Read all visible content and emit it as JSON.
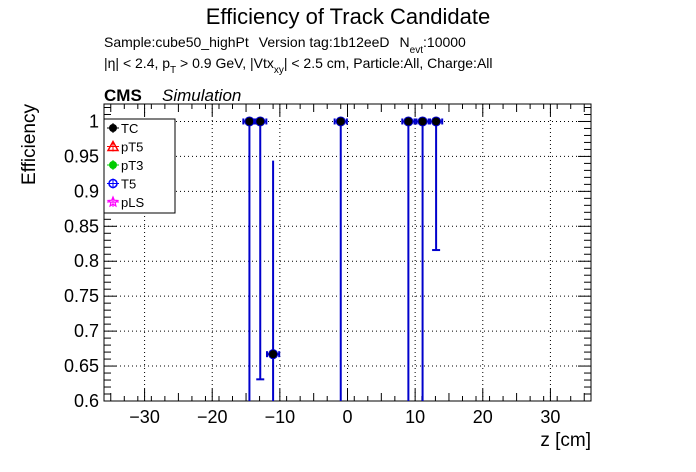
{
  "chart_data": {
    "type": "scatter",
    "title": "Efficiency of Track Candidate",
    "info_line1": {
      "sample": "Sample:cube50_highPt",
      "version": "Version tag:1b12eeD",
      "n_prefix": "N",
      "n_sub": "evt",
      "n_value": ":10000"
    },
    "info_line2": {
      "eta": "|η| < 2.4, p",
      "pt_sub": "T",
      "pt_rest": " > 0.9 GeV, |Vtx",
      "vtx_sub": "xy",
      "vtx_rest": "| < 2.5 cm, Particle:All, Charge:All"
    },
    "cms_label": "CMS",
    "simulation_label": "Simulation",
    "xlabel": "z [cm]",
    "ylabel": "Efficiency",
    "xlim": [
      -36,
      36
    ],
    "ylim": [
      0.6,
      1.025
    ],
    "xticks": [
      -30,
      -20,
      -10,
      0,
      10,
      20,
      30
    ],
    "yticks": [
      0.6,
      0.65,
      0.7,
      0.75,
      0.8,
      0.85,
      0.9,
      0.95,
      1
    ],
    "ytick_labels": [
      "0.6",
      "0.65",
      "0.7",
      "0.75",
      "0.8",
      "0.85",
      "0.9",
      "0.95",
      "1"
    ],
    "xtick_labels": [
      "−30",
      "−20",
      "−10",
      "0",
      "10",
      "20",
      "30"
    ],
    "grid": true,
    "legend_position": "top-left",
    "legend": [
      {
        "name": "TC",
        "color": "#000000",
        "marker": "filled-circle"
      },
      {
        "name": "pT5",
        "color": "#ff0000",
        "marker": "open-triangle"
      },
      {
        "name": "pT3",
        "color": "#00cc00",
        "marker": "filled-circle"
      },
      {
        "name": "T5",
        "color": "#0000ff",
        "marker": "open-circle"
      },
      {
        "name": "pLS",
        "color": "#ff00ff",
        "marker": "open-star"
      }
    ],
    "series": [
      {
        "name": "TC",
        "marker_color": "#000000",
        "error_color": "#0000cc",
        "points": [
          {
            "x": -14.5,
            "y": 1.0,
            "xerr": 0.9,
            "ylow": 0.6,
            "yhigh": 1.0
          },
          {
            "x": -12.9,
            "y": 1.0,
            "xerr": 0.9,
            "ylow": 0.631,
            "yhigh": 1.0
          },
          {
            "x": -11.0,
            "y": 0.667,
            "xerr": 0.9,
            "ylow": 0.6,
            "yhigh": 0.944
          },
          {
            "x": -1.0,
            "y": 1.0,
            "xerr": 0.9,
            "ylow": 0.6,
            "yhigh": 1.0
          },
          {
            "x": 9.0,
            "y": 1.0,
            "xerr": 0.9,
            "ylow": 0.6,
            "yhigh": 1.0
          },
          {
            "x": 11.1,
            "y": 1.0,
            "xerr": 0.9,
            "ylow": 0.6,
            "yhigh": 1.0
          },
          {
            "x": 13.1,
            "y": 1.0,
            "xerr": 0.9,
            "ylow": 0.816,
            "yhigh": 1.0
          }
        ]
      }
    ]
  }
}
